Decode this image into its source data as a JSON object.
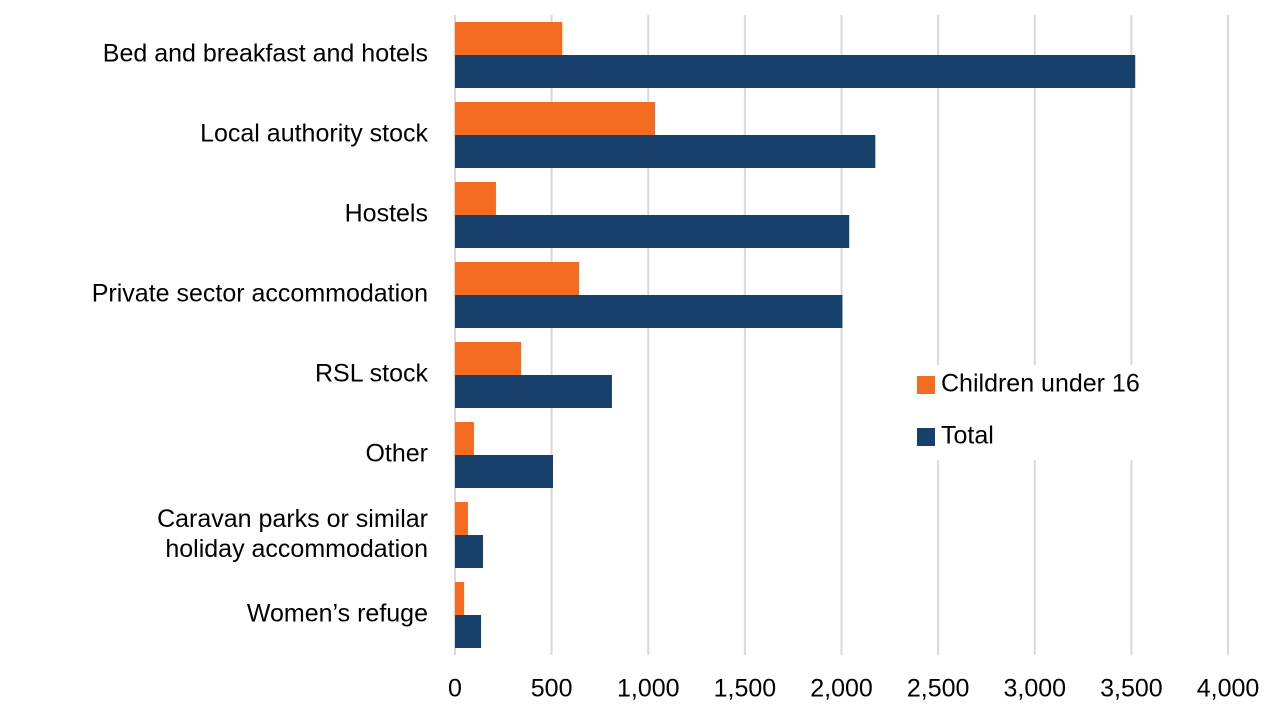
{
  "chart_data": {
    "type": "bar",
    "orientation": "horizontal",
    "categories": [
      "Bed and breakfast and hotels",
      "Local authority stock",
      "Hostels",
      "Private sector accommodation",
      "RSL stock",
      "Other",
      "Caravan parks or similar\nholiday accommodation",
      "Women’s refuge"
    ],
    "series": [
      {
        "name": "Children under 16",
        "color": "#f36c22",
        "values": [
          555,
          1035,
          212,
          642,
          342,
          98,
          67,
          47
        ]
      },
      {
        "name": "Total",
        "color": "#17406d",
        "values": [
          3520,
          2175,
          2040,
          2005,
          812,
          507,
          145,
          135
        ]
      }
    ],
    "xlim": [
      0,
      4000
    ],
    "xticks": [
      0,
      500,
      {
        "value": 1000,
        "label": "1,000"
      },
      {
        "value": 1500,
        "label": "1,500"
      },
      {
        "value": 2000,
        "label": "2,000"
      },
      {
        "value": 2500,
        "label": "2,500"
      },
      {
        "value": 3000,
        "label": "3,000"
      },
      {
        "value": 3500,
        "label": "3,500"
      },
      {
        "value": 4000,
        "label": "4,000"
      }
    ],
    "grid": true,
    "legend": "right"
  }
}
